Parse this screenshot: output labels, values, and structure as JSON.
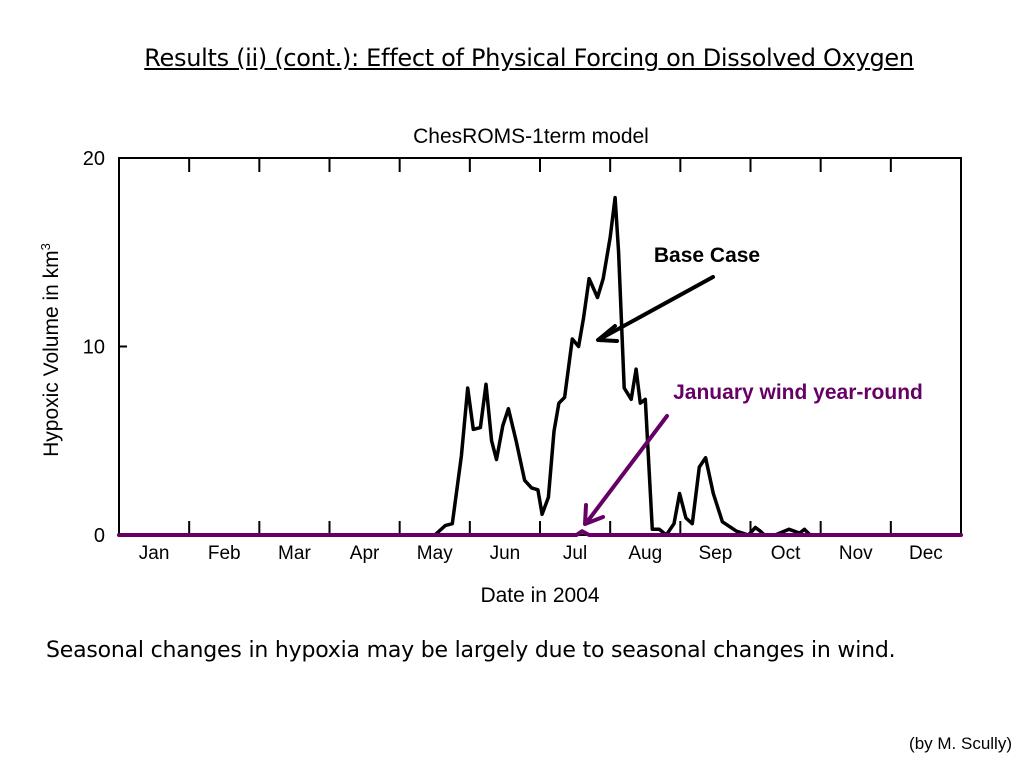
{
  "slide": {
    "title": "Results (ii) (cont.): Effect of Physical Forcing on Dissolved Oxygen",
    "caption": "Seasonal changes in hypoxia may be largely due to seasonal changes in wind.",
    "credit": "(by M. Scully)"
  },
  "chart_data": {
    "type": "line",
    "title": "ChesROMS-1term model",
    "xlabel": "Date in 2004",
    "ylabel": "Hypoxic Volume in km",
    "ylabel_superscript": "3",
    "xlim": [
      0,
      12
    ],
    "ylim": [
      0,
      20
    ],
    "yticks": [
      0,
      10,
      20
    ],
    "yticklabels": [
      "0",
      "10",
      "20"
    ],
    "month_labels": [
      "Jan",
      "Feb",
      "Mar",
      "Apr",
      "May",
      "Jun",
      "Jul",
      "Aug",
      "Sep",
      "Oct",
      "Nov",
      "Dec"
    ],
    "grid": false,
    "series": [
      {
        "name": "Base Case",
        "color": "#000000",
        "x": [
          0,
          4.5,
          4.65,
          4.75,
          4.88,
          4.97,
          5.05,
          5.15,
          5.23,
          5.31,
          5.38,
          5.47,
          5.55,
          5.66,
          5.78,
          5.88,
          5.97,
          6.03,
          6.12,
          6.2,
          6.27,
          6.35,
          6.46,
          6.55,
          6.62,
          6.7,
          6.82,
          6.9,
          7.0,
          7.07,
          7.12,
          7.2,
          7.3,
          7.37,
          7.43,
          7.5,
          7.6,
          7.7,
          7.8,
          7.91,
          7.99,
          8.08,
          8.17,
          8.27,
          8.36,
          8.47,
          8.6,
          8.8,
          8.97,
          9.07,
          9.14,
          9.2,
          9.35,
          9.55,
          9.7,
          9.77,
          9.85,
          12.0
        ],
        "y": [
          0,
          0,
          0.5,
          0.6,
          4.2,
          7.8,
          5.6,
          5.7,
          8.0,
          5.0,
          4.0,
          5.8,
          6.7,
          5.0,
          2.9,
          2.5,
          2.4,
          1.1,
          2.0,
          5.5,
          7.0,
          7.3,
          10.4,
          10.0,
          11.5,
          13.6,
          12.6,
          13.6,
          15.8,
          17.9,
          15.0,
          7.8,
          7.2,
          8.8,
          7.0,
          7.2,
          0.3,
          0.3,
          0.0,
          0.6,
          2.2,
          0.9,
          0.6,
          3.6,
          4.1,
          2.2,
          0.7,
          0.2,
          0.0,
          0.4,
          0.2,
          0.0,
          0.0,
          0.3,
          0.1,
          0.3,
          0.0,
          0
        ]
      },
      {
        "name": "January wind year-round",
        "color": "#660066",
        "x": [
          0,
          6.52,
          6.6,
          6.7,
          12.0
        ],
        "y": [
          0,
          0,
          0.2,
          0,
          0
        ]
      }
    ],
    "annotations": [
      {
        "text": "Base Case",
        "color": "#000000"
      },
      {
        "text": "January wind year-round",
        "color": "#660066"
      }
    ]
  }
}
